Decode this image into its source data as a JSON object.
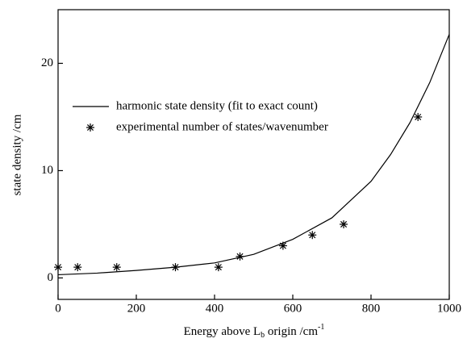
{
  "chart_data": {
    "type": "line-scatter",
    "x_label": {
      "text": "Energy above L",
      "sub": "b",
      "rest": " origin /cm",
      "sup": "-1"
    },
    "y_label": "state density /cm",
    "xlim": [
      0,
      1000
    ],
    "xticks": [
      0,
      200,
      400,
      600,
      800,
      1000
    ],
    "ylim": [
      -2,
      25
    ],
    "yticks": [
      0,
      10,
      20
    ],
    "legend": "upper left",
    "series": [
      {
        "name": "harmonic state density (fit to exact count)",
        "kind": "line",
        "color": "#000000",
        "x": [
          0,
          100,
          200,
          300,
          400,
          500,
          600,
          700,
          800,
          850,
          900,
          950,
          1000
        ],
        "values": [
          0.3,
          0.45,
          0.7,
          1.0,
          1.4,
          2.2,
          3.6,
          5.6,
          9.0,
          11.5,
          14.5,
          18.2,
          22.7
        ]
      },
      {
        "name": "experimental number of states/wavenumber",
        "kind": "scatter",
        "color": "#000000",
        "x": [
          0,
          50,
          150,
          300,
          410,
          465,
          575,
          650,
          730,
          920
        ],
        "values": [
          1,
          1,
          1,
          1,
          1,
          2,
          3,
          4,
          5,
          15
        ]
      }
    ]
  }
}
